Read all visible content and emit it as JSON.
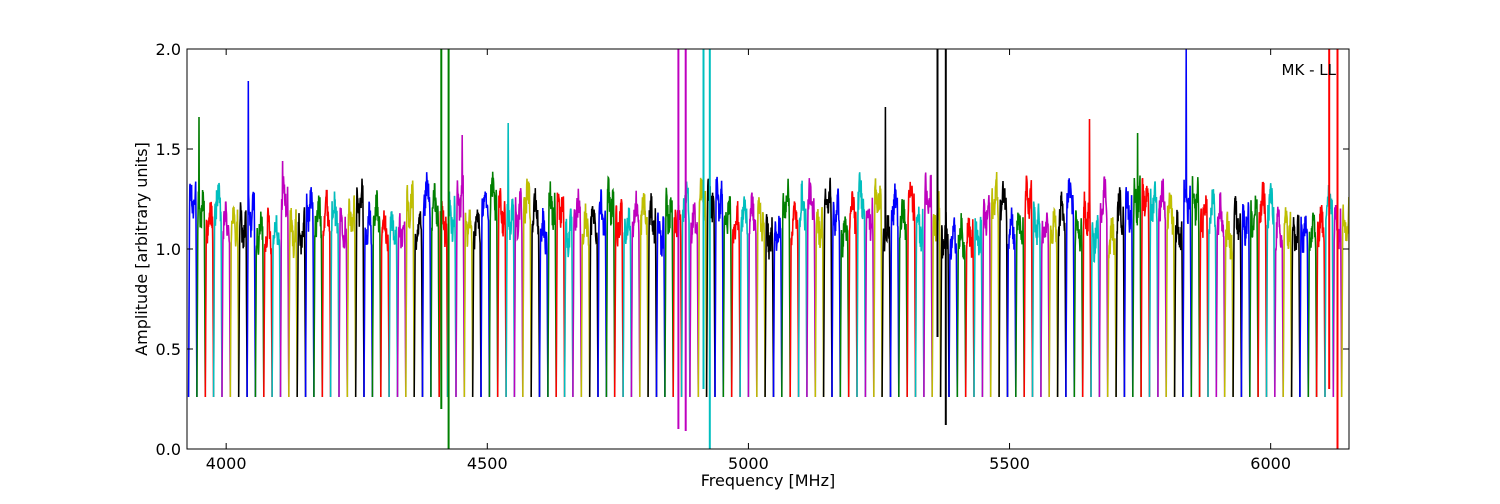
{
  "chart_data": {
    "type": "line",
    "title": "",
    "xlabel": "Frequency [MHz]",
    "ylabel": "Amplitude [arbitrary units]",
    "xlim": [
      3925,
      6150
    ],
    "ylim": [
      0.0,
      2.0
    ],
    "xticks": [
      4000,
      4500,
      5000,
      5500,
      6000
    ],
    "yticks": [
      0.0,
      0.5,
      1.0,
      1.5,
      2.0
    ],
    "xtick_labels": [
      "4000",
      "4500",
      "5000",
      "5500",
      "6000"
    ],
    "ytick_labels": [
      "0.0",
      "0.5",
      "1.0",
      "1.5",
      "2.0"
    ],
    "grid": false,
    "annotation": "MK - LL",
    "annotation_placement": "top-right",
    "channel_width_mhz": 16,
    "background_trace_color": "#bfbfbf",
    "color_cycle": [
      "#0000ff",
      "#008000",
      "#ff0000",
      "#00bfbf",
      "#bf00bf",
      "#bfbf00",
      "#000000"
    ],
    "window_start_mhz": 3928,
    "window_count": 139,
    "spikes": [
      {
        "x": 3948,
        "y": 1.66
      },
      {
        "x": 4042,
        "y": 1.84
      },
      {
        "x": 4108,
        "y": 1.44
      },
      {
        "x": 4452,
        "y": 1.57
      },
      {
        "x": 4540,
        "y": 1.63
      },
      {
        "x": 5262,
        "y": 1.71
      },
      {
        "x": 5362,
        "y": 1.56
      },
      {
        "x": 5653,
        "y": 1.65
      },
      {
        "x": 5745,
        "y": 1.58
      },
      {
        "x": 5838,
        "y": 2.0
      },
      {
        "x": 5846,
        "y": 1.98
      }
    ],
    "rfi_lines": [
      {
        "x": 4412,
        "color": "#008000",
        "ymin": 0.2
      },
      {
        "x": 4426,
        "color": "#008000",
        "ymin": 0.0
      },
      {
        "x": 4866,
        "color": "#bf00bf",
        "ymin": 0.1
      },
      {
        "x": 4880,
        "color": "#bf00bf",
        "ymin": 0.09
      },
      {
        "x": 4914,
        "color": "#00bfbf",
        "ymin": 0.3
      },
      {
        "x": 4926,
        "color": "#00bfbf",
        "ymin": 0.0
      },
      {
        "x": 5362,
        "color": "#000000",
        "ymin": 0.56
      },
      {
        "x": 5378,
        "color": "#000000",
        "ymin": 0.12
      },
      {
        "x": 6112,
        "color": "#ff0000",
        "ymin": 0.3
      },
      {
        "x": 6128,
        "color": "#ff0000",
        "ymin": 0.0
      }
    ]
  }
}
